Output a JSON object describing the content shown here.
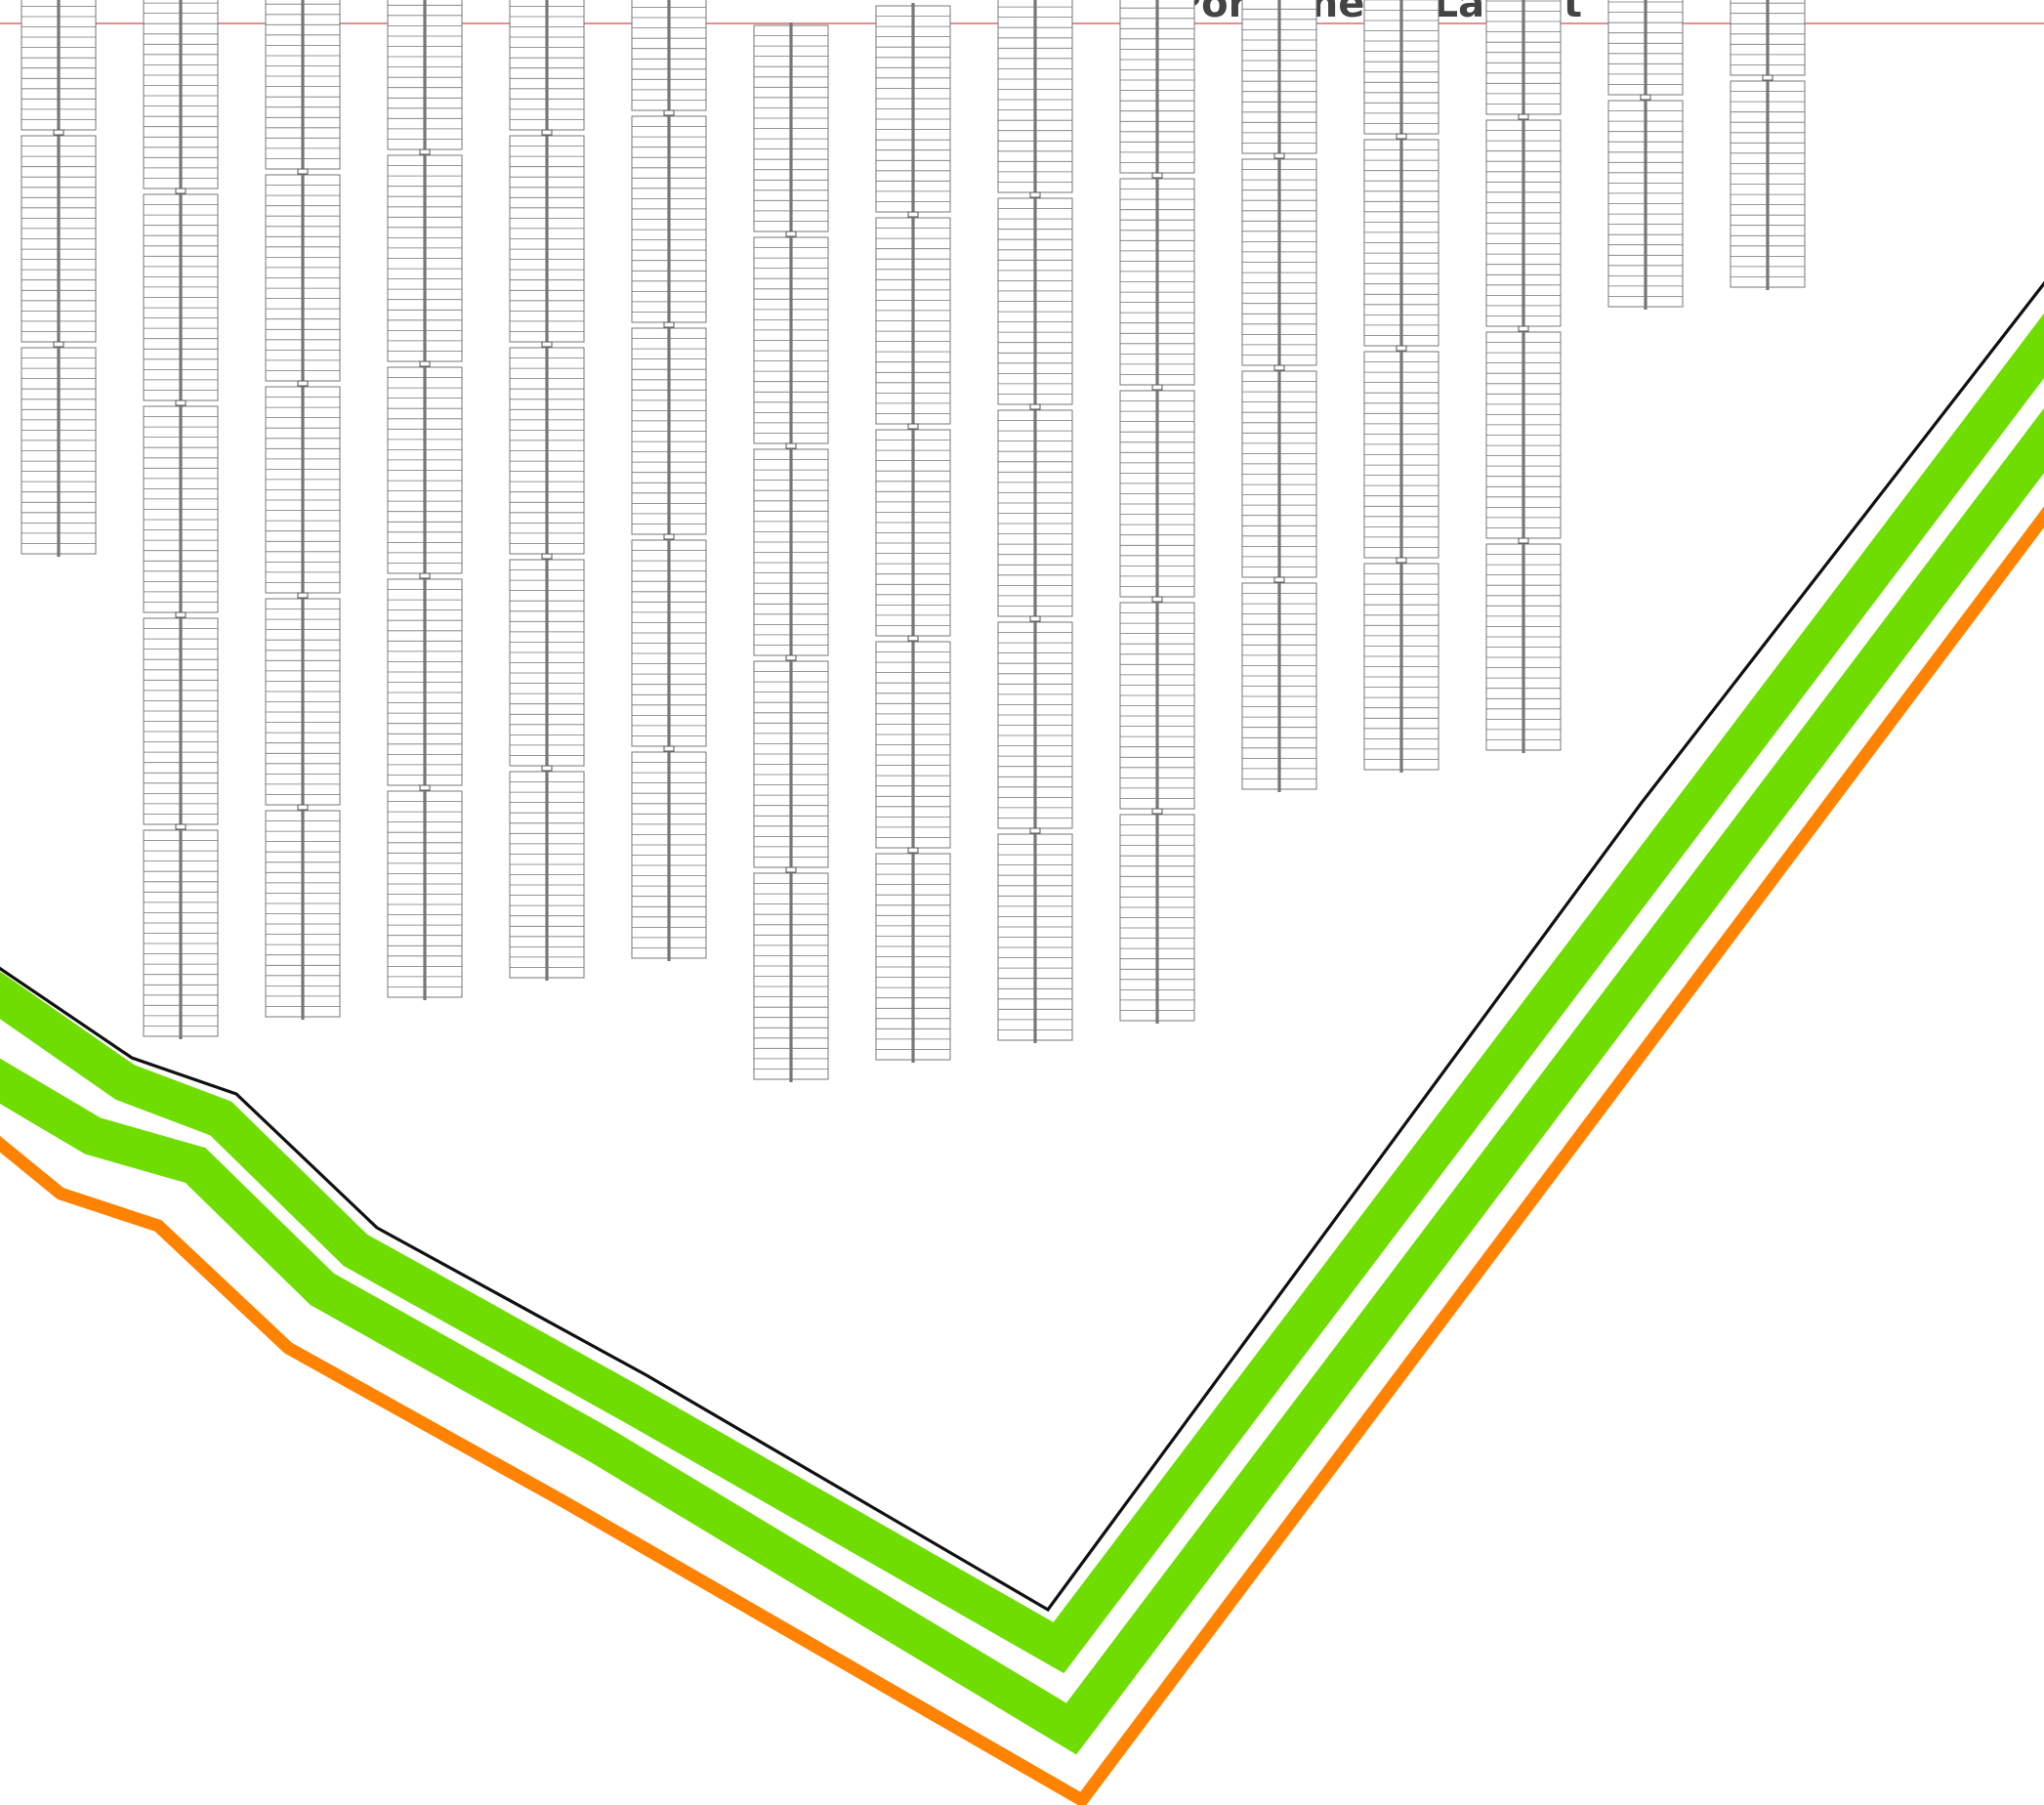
{
  "title": "Porzione di Layout",
  "colors": {
    "boundary": "#d84a4a",
    "fence": "#111111",
    "green_strip": "#6fdd00",
    "orange_strip": "#ff8200",
    "panel_outline": "#777777",
    "tracker_axis": "#777777"
  },
  "layout": {
    "module_rows_per_table": 20,
    "tables_per_column": [
      3,
      5,
      5,
      5,
      5,
      5,
      5,
      5,
      5,
      5,
      4,
      4,
      4,
      2,
      2
    ]
  }
}
